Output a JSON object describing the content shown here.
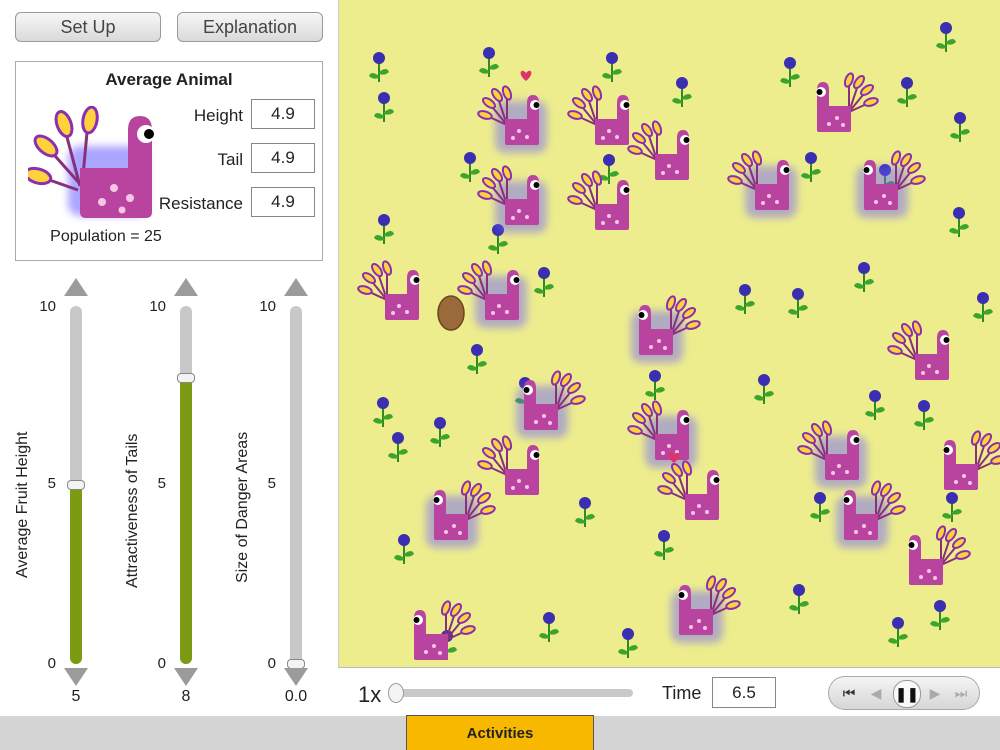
{
  "buttons": {
    "setup": "Set Up",
    "explanation": "Explanation"
  },
  "average_animal": {
    "title": "Average Animal",
    "height_label": "Height",
    "height_value": "4.9",
    "tail_label": "Tail",
    "tail_value": "4.9",
    "resistance_label": "Resistance",
    "resistance_value": "4.9",
    "population_text": "Population = 25"
  },
  "sliders": [
    {
      "label": "Average Fruit Height",
      "value": "5",
      "max_tick": "10",
      "mid_tick": "5",
      "min_tick": "0",
      "fraction": 0.5
    },
    {
      "label": "Attractiveness of Tails",
      "value": "8",
      "max_tick": "10",
      "mid_tick": "5",
      "min_tick": "0",
      "fraction": 0.8
    },
    {
      "label": "Size of Danger Areas",
      "value": "0.0",
      "max_tick": "10",
      "mid_tick": "5",
      "min_tick": "0",
      "fraction": 0.0
    }
  ],
  "playback": {
    "speed_label": "1x",
    "speed_fraction": 0.0,
    "time_label": "Time",
    "time_value": "6.5"
  },
  "tabs": {
    "activities": "Activities"
  },
  "colors": {
    "field": "#eded8e",
    "slider_fill": "#7c9b12",
    "creature": "#b8449f",
    "flower": "#3a2fb0",
    "tab": "#f8b800"
  },
  "icons": {
    "creature": "creature-icon",
    "flower": "flower-icon",
    "egg": "egg-icon",
    "heart": "heart-icon"
  }
}
